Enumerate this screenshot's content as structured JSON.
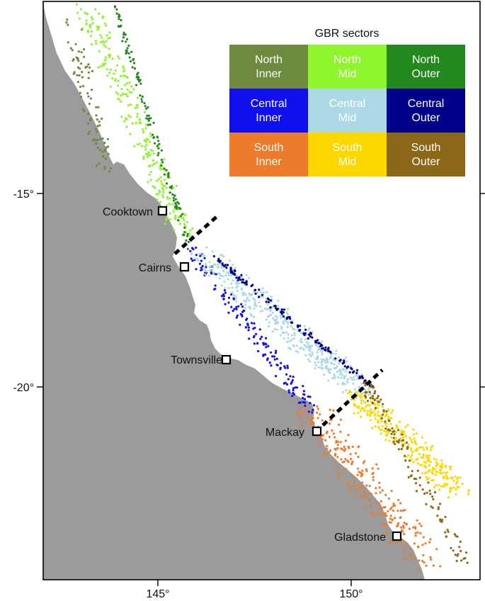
{
  "map": {
    "land_color": "#9b9b9b",
    "sea_color": "#ffffff",
    "boundary_style": "dashed-black"
  },
  "axes": {
    "y_ticks": [
      {
        "label": "-15°",
        "lat": -15
      },
      {
        "label": "-20°",
        "lat": -20
      }
    ],
    "x_ticks": [
      {
        "label": "145°",
        "lon": 145
      },
      {
        "label": "150°",
        "lon": 150
      }
    ]
  },
  "cities": [
    {
      "name": "Cooktown",
      "lon": 145.25,
      "lat": -15.47
    },
    {
      "name": "Cairns",
      "lon": 145.77,
      "lat": -16.92
    },
    {
      "name": "Townsville",
      "lon": 146.82,
      "lat": -19.26
    },
    {
      "name": "Mackay",
      "lon": 149.19,
      "lat": -21.14
    },
    {
      "name": "Gladstone",
      "lon": 151.26,
      "lat": -23.85
    }
  ],
  "legend": {
    "title": "GBR sectors",
    "rows": [
      [
        {
          "line1": "North",
          "line2": "Inner",
          "color": "#6d8a3e",
          "text_color": "#ffffff"
        },
        {
          "line1": "North",
          "line2": "Mid",
          "color": "#8ff52c",
          "text_color": "#ffffff"
        },
        {
          "line1": "North",
          "line2": "Outer",
          "color": "#23891f",
          "text_color": "#ffffff"
        }
      ],
      [
        {
          "line1": "Central",
          "line2": "Inner",
          "color": "#1010ee",
          "text_color": "#ffffff"
        },
        {
          "line1": "Central",
          "line2": "Mid",
          "color": "#add8e6",
          "text_color": "#ffffff"
        },
        {
          "line1": "Central",
          "line2": "Outer",
          "color": "#00008b",
          "text_color": "#ffffff"
        }
      ],
      [
        {
          "line1": "South",
          "line2": "Inner",
          "color": "#ed7b2c",
          "text_color": "#ffffff"
        },
        {
          "line1": "South",
          "line2": "Mid",
          "color": "#ffd700",
          "text_color": "#ffffff"
        },
        {
          "line1": "South",
          "line2": "Outer",
          "color": "#8b6818",
          "text_color": "#ffffff"
        }
      ]
    ]
  }
}
